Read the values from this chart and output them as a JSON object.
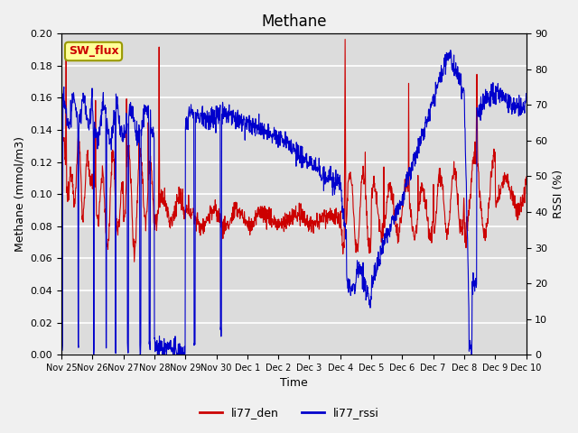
{
  "title": "Methane",
  "ylabel_left": "Methane (mmol/m3)",
  "ylabel_right": "RSSI (%)",
  "xlabel": "Time",
  "ylim_left": [
    0.0,
    0.2
  ],
  "ylim_right": [
    0,
    90
  ],
  "yticks_left": [
    0.0,
    0.02,
    0.04,
    0.06,
    0.08,
    0.1,
    0.12,
    0.14,
    0.16,
    0.18,
    0.2
  ],
  "yticks_right": [
    0,
    10,
    20,
    30,
    40,
    50,
    60,
    70,
    80,
    90
  ],
  "plot_bg_color": "#dcdcdc",
  "fig_bg_color": "#f0f0f0",
  "grid_color": "#ffffff",
  "line_color_red": "#cc0000",
  "line_color_blue": "#0000cc",
  "label_box_text": "SW_flux",
  "label_box_facecolor": "#ffff99",
  "label_box_edgecolor": "#999900",
  "label_box_textcolor": "#cc0000",
  "legend_labels": [
    "li77_den",
    "li77_rssi"
  ],
  "legend_colors": [
    "#cc0000",
    "#0000cc"
  ],
  "xtick_labels": [
    "Nov 25",
    "Nov 26",
    "Nov 27",
    "Nov 28",
    "Nov 29",
    "Nov 30",
    "Dec 1",
    "Dec 2",
    "Dec 3",
    "Dec 4",
    "Dec 5",
    "Dec 6",
    "Dec 7",
    "Dec 8",
    "Dec 9",
    "Dec 10"
  ],
  "num_points": 1500
}
